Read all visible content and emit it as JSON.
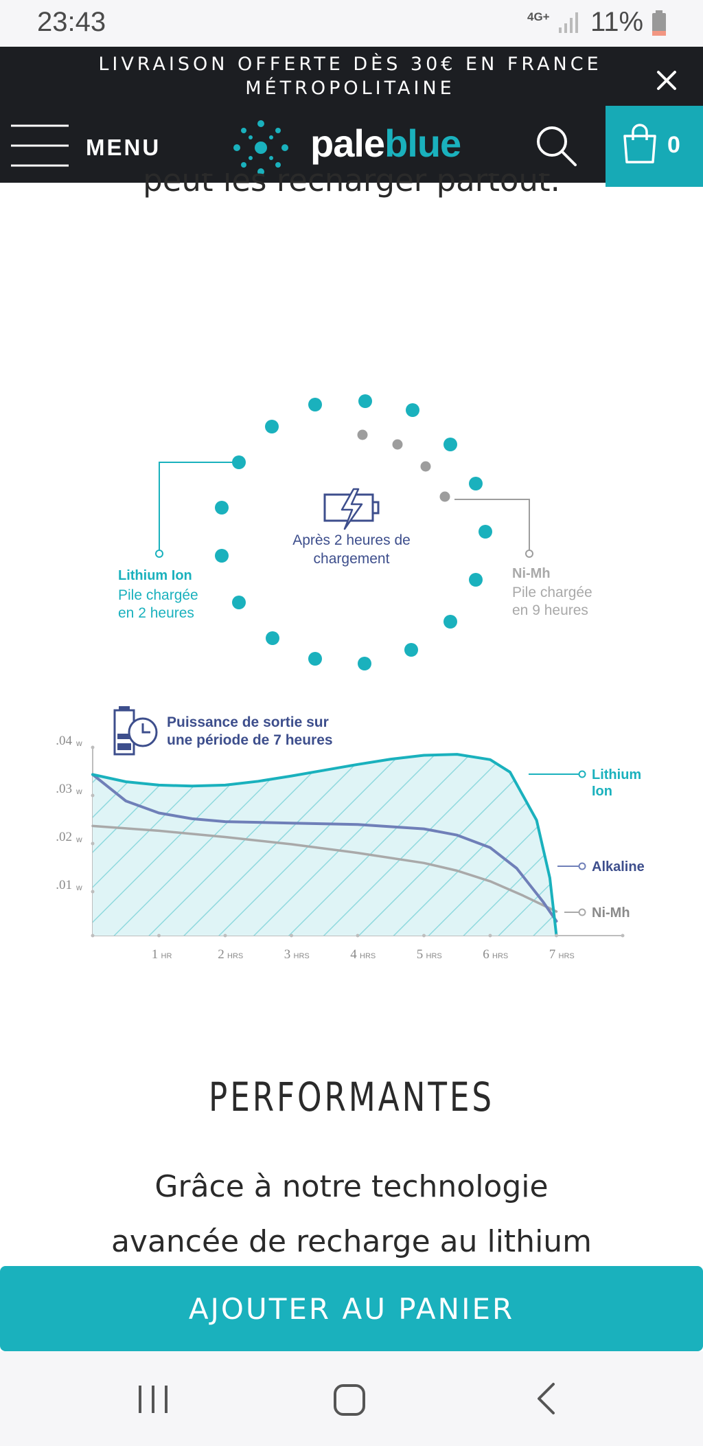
{
  "status_bar": {
    "time": "23:43",
    "network": "4G+",
    "battery": "11%"
  },
  "announcement": {
    "line1": "LIVRAISON OFFERTE DÈS 30€ EN FRANCE",
    "line2": "MÉTROPOLITAINE"
  },
  "header": {
    "menu_label": "MENU",
    "logo_pale": "pale",
    "logo_blue": "blue",
    "cart_count": "0"
  },
  "content": {
    "partial_line": "peut les recharger partout.",
    "section_title": "PERFORMANTES",
    "body_line1": "Grâce à notre technologie",
    "body_line2": "avancée de recharge au lithium"
  },
  "charging_figure": {
    "center_line1": "Après 2 heures de",
    "center_line2": "chargement",
    "left_title": "Lithium Ion",
    "left_line1": "Pile chargée",
    "left_line2": "en 2 heures",
    "right_title": "Ni-Mh",
    "right_line1": "Pile chargée",
    "right_line2": "en 9 heures"
  },
  "chart_data": {
    "type": "line",
    "title": "Puissance de sortie sur une période de 7 heures",
    "title_line1": "Puissance de sortie sur",
    "title_line2": "une période de 7 heures",
    "x": [
      0,
      1,
      2,
      3,
      4,
      5,
      6,
      7
    ],
    "x_tick_labels": [
      {
        "num": "1",
        "unit": "HR"
      },
      {
        "num": "2",
        "unit": "HRS"
      },
      {
        "num": "3",
        "unit": "HRS"
      },
      {
        "num": "4",
        "unit": "HRS"
      },
      {
        "num": "5",
        "unit": "HRS"
      },
      {
        "num": "6",
        "unit": "HRS"
      },
      {
        "num": "7",
        "unit": "HRS"
      }
    ],
    "y_tick_labels": [
      {
        "value": 0.04,
        "label": ".04",
        "unit": "W"
      },
      {
        "value": 0.03,
        "label": ".03",
        "unit": "W"
      },
      {
        "value": 0.02,
        "label": ".02",
        "unit": "W"
      },
      {
        "value": 0.01,
        "label": ".01",
        "unit": "W"
      }
    ],
    "xlim": [
      0,
      8
    ],
    "ylim": [
      0,
      0.04
    ],
    "series": [
      {
        "name": "Lithium Ion",
        "label_line1": "Lithium",
        "label_line2": "Ion",
        "color": "#1ab1bd",
        "x": [
          0,
          0.5,
          1,
          1.5,
          2,
          2.5,
          3,
          3.5,
          4,
          4.5,
          5,
          5.5,
          6,
          6.3,
          6.7,
          6.9,
          7.0
        ],
        "values": [
          0.0335,
          0.032,
          0.0313,
          0.0311,
          0.0313,
          0.0321,
          0.0332,
          0.0344,
          0.0356,
          0.0367,
          0.0375,
          0.0377,
          0.0366,
          0.034,
          0.024,
          0.012,
          0.0
        ]
      },
      {
        "name": "Alkaline",
        "color": "#6f7fb8",
        "x": [
          0,
          0.5,
          1,
          1.5,
          2,
          3,
          4,
          5,
          5.5,
          6,
          6.4,
          6.8,
          7.0
        ],
        "values": [
          0.0335,
          0.028,
          0.0255,
          0.0243,
          0.0237,
          0.0234,
          0.0231,
          0.0222,
          0.0209,
          0.0183,
          0.014,
          0.007,
          0.003
        ]
      },
      {
        "name": "Ni-Mh",
        "color": "#a9a9a9",
        "x": [
          0,
          1,
          2,
          3,
          4,
          5,
          5.5,
          6,
          6.5,
          7.0
        ],
        "values": [
          0.0228,
          0.0218,
          0.0205,
          0.019,
          0.0172,
          0.0151,
          0.0135,
          0.0113,
          0.0083,
          0.005
        ]
      }
    ],
    "grid": false,
    "legend": "right"
  },
  "cta": {
    "add_to_cart": "AJOUTER AU PANIER"
  },
  "colors": {
    "accent": "#1ab1bd",
    "dark": "#1c1e22",
    "navy": "#3d4e8c",
    "gray": "#a9a9a9"
  }
}
